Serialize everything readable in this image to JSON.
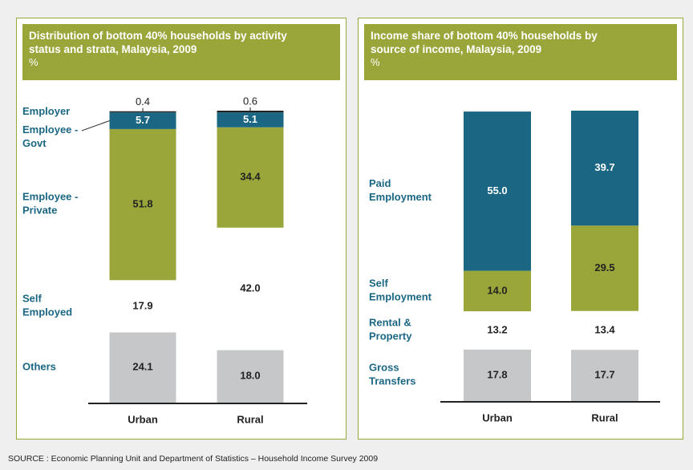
{
  "chart_data": [
    {
      "type": "stacked_bar",
      "title": "Distribution of bottom 40% households by activity status and strata, Malaysia, 2009",
      "subtitle": "%",
      "categories": [
        "Urban",
        "Rural"
      ],
      "series": [
        {
          "name": "Others",
          "color": "#c6c7c9",
          "values": [
            24.1,
            18.0
          ],
          "value_labels": [
            "24.1",
            "18.0"
          ]
        },
        {
          "name": "Self Employed",
          "color": "#ffffff",
          "values": [
            17.9,
            42.0
          ],
          "value_labels": [
            "17.9",
            "42.0"
          ]
        },
        {
          "name": "Employee - Private",
          "color": "#9aa63a",
          "values": [
            51.8,
            34.4
          ],
          "value_labels": [
            "51.8",
            "34.4"
          ]
        },
        {
          "name": "Employee - Govt",
          "color": "#1b6783",
          "values": [
            5.7,
            5.1
          ],
          "value_labels": [
            "5.7",
            "5.1"
          ]
        },
        {
          "name": "Employer",
          "color": "#222222",
          "values": [
            0.4,
            0.6
          ],
          "value_labels": [
            "0.4",
            "0.6"
          ]
        }
      ]
    },
    {
      "type": "stacked_bar",
      "title": "Income share of bottom 40% households by source of income, Malaysia, 2009",
      "subtitle": "%",
      "categories": [
        "Urban",
        "Rural"
      ],
      "series": [
        {
          "name": "Gross Transfers",
          "color": "#c6c7c9",
          "values": [
            17.8,
            17.7
          ],
          "value_labels": [
            "17.8",
            "17.7"
          ]
        },
        {
          "name": "Rental & Property",
          "color": "#ffffff",
          "values": [
            13.2,
            13.4
          ],
          "value_labels": [
            "13.2",
            "13.4"
          ]
        },
        {
          "name": "Self Employment",
          "color": "#9aa63a",
          "values": [
            14.0,
            29.5
          ],
          "value_labels": [
            "14.0",
            "29.5"
          ]
        },
        {
          "name": "Paid Employment",
          "color": "#1b6783",
          "values": [
            55.0,
            39.7
          ],
          "value_labels": [
            "55.0",
            "39.7"
          ]
        }
      ]
    }
  ],
  "source": "SOURCE : Economic Planning Unit and Department of Statistics – Household Income Survey 2009"
}
